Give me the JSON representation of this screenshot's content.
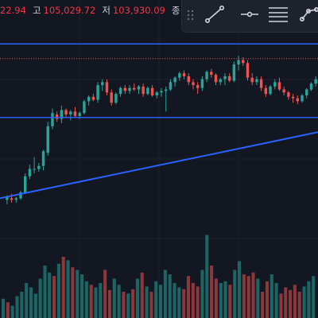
{
  "ohlc_bar": {
    "open_value": "22.94",
    "high_label": "고",
    "high_value": "105,029.72",
    "low_label": "저",
    "low_value": "103,930.09",
    "close_label": "종"
  },
  "toolbar": {
    "tools": [
      {
        "name": "trend-line-icon"
      },
      {
        "name": "horizontal-ray-icon"
      },
      {
        "name": "parallel-channel-icon"
      },
      {
        "name": "path-icon"
      }
    ]
  },
  "colors": {
    "background": "#131722",
    "up": "#26a69a",
    "down": "#ef5350",
    "line": "#2962ff",
    "text": "#d1d4dc"
  },
  "chart_data": {
    "type": "candlestick",
    "price_candles": [
      {
        "o": 0.02,
        "h": 0.05,
        "l": -0.01,
        "c": 0.04
      },
      {
        "o": 0.03,
        "h": 0.06,
        "l": 0.0,
        "c": 0.02
      },
      {
        "o": 0.02,
        "h": 0.04,
        "l": 0.0,
        "c": 0.03
      },
      {
        "o": 0.03,
        "h": 0.08,
        "l": 0.02,
        "c": 0.07
      },
      {
        "o": 0.07,
        "h": 0.2,
        "l": 0.06,
        "c": 0.18
      },
      {
        "o": 0.18,
        "h": 0.26,
        "l": 0.16,
        "c": 0.23
      },
      {
        "o": 0.23,
        "h": 0.31,
        "l": 0.2,
        "c": 0.23
      },
      {
        "o": 0.23,
        "h": 0.27,
        "l": 0.21,
        "c": 0.25
      },
      {
        "o": 0.25,
        "h": 0.36,
        "l": 0.22,
        "c": 0.35
      },
      {
        "o": 0.34,
        "h": 0.55,
        "l": 0.32,
        "c": 0.52
      },
      {
        "o": 0.52,
        "h": 0.64,
        "l": 0.5,
        "c": 0.61
      },
      {
        "o": 0.6,
        "h": 0.62,
        "l": 0.55,
        "c": 0.57
      },
      {
        "o": 0.57,
        "h": 0.66,
        "l": 0.54,
        "c": 0.63
      },
      {
        "o": 0.63,
        "h": 0.64,
        "l": 0.58,
        "c": 0.6
      },
      {
        "o": 0.6,
        "h": 0.63,
        "l": 0.56,
        "c": 0.62
      },
      {
        "o": 0.62,
        "h": 0.65,
        "l": 0.58,
        "c": 0.59
      },
      {
        "o": 0.59,
        "h": 0.62,
        "l": 0.57,
        "c": 0.61
      },
      {
        "o": 0.61,
        "h": 0.7,
        "l": 0.6,
        "c": 0.69
      },
      {
        "o": 0.69,
        "h": 0.73,
        "l": 0.66,
        "c": 0.72
      },
      {
        "o": 0.72,
        "h": 0.74,
        "l": 0.69,
        "c": 0.7
      },
      {
        "o": 0.7,
        "h": 0.82,
        "l": 0.68,
        "c": 0.8
      },
      {
        "o": 0.8,
        "h": 0.84,
        "l": 0.76,
        "c": 0.82
      },
      {
        "o": 0.82,
        "h": 0.84,
        "l": 0.73,
        "c": 0.75
      },
      {
        "o": 0.75,
        "h": 0.77,
        "l": 0.66,
        "c": 0.68
      },
      {
        "o": 0.68,
        "h": 0.75,
        "l": 0.67,
        "c": 0.74
      },
      {
        "o": 0.74,
        "h": 0.79,
        "l": 0.72,
        "c": 0.78
      },
      {
        "o": 0.78,
        "h": 0.8,
        "l": 0.74,
        "c": 0.76
      },
      {
        "o": 0.76,
        "h": 0.8,
        "l": 0.74,
        "c": 0.78
      },
      {
        "o": 0.78,
        "h": 0.81,
        "l": 0.76,
        "c": 0.77
      },
      {
        "o": 0.77,
        "h": 0.8,
        "l": 0.74,
        "c": 0.79
      },
      {
        "o": 0.79,
        "h": 0.81,
        "l": 0.72,
        "c": 0.74
      },
      {
        "o": 0.74,
        "h": 0.79,
        "l": 0.73,
        "c": 0.78
      },
      {
        "o": 0.78,
        "h": 0.8,
        "l": 0.72,
        "c": 0.73
      },
      {
        "o": 0.73,
        "h": 0.76,
        "l": 0.71,
        "c": 0.75
      },
      {
        "o": 0.75,
        "h": 0.78,
        "l": 0.72,
        "c": 0.76
      },
      {
        "o": 0.76,
        "h": 0.79,
        "l": 0.62,
        "c": 0.77
      },
      {
        "o": 0.77,
        "h": 0.84,
        "l": 0.76,
        "c": 0.82
      },
      {
        "o": 0.82,
        "h": 0.86,
        "l": 0.79,
        "c": 0.85
      },
      {
        "o": 0.85,
        "h": 0.89,
        "l": 0.83,
        "c": 0.88
      },
      {
        "o": 0.88,
        "h": 0.9,
        "l": 0.84,
        "c": 0.86
      },
      {
        "o": 0.86,
        "h": 0.88,
        "l": 0.8,
        "c": 0.82
      },
      {
        "o": 0.82,
        "h": 0.84,
        "l": 0.77,
        "c": 0.8
      },
      {
        "o": 0.8,
        "h": 0.82,
        "l": 0.74,
        "c": 0.78
      },
      {
        "o": 0.78,
        "h": 0.86,
        "l": 0.76,
        "c": 0.84
      },
      {
        "o": 0.84,
        "h": 0.9,
        "l": 0.82,
        "c": 0.89
      },
      {
        "o": 0.89,
        "h": 0.91,
        "l": 0.85,
        "c": 0.87
      },
      {
        "o": 0.87,
        "h": 0.88,
        "l": 0.8,
        "c": 0.82
      },
      {
        "o": 0.82,
        "h": 0.85,
        "l": 0.8,
        "c": 0.84
      },
      {
        "o": 0.84,
        "h": 0.88,
        "l": 0.8,
        "c": 0.86
      },
      {
        "o": 0.86,
        "h": 0.88,
        "l": 0.82,
        "c": 0.83
      },
      {
        "o": 0.83,
        "h": 0.96,
        "l": 0.82,
        "c": 0.94
      },
      {
        "o": 0.94,
        "h": 1.0,
        "l": 0.9,
        "c": 0.97
      },
      {
        "o": 0.97,
        "h": 0.99,
        "l": 0.93,
        "c": 0.95
      },
      {
        "o": 0.95,
        "h": 0.97,
        "l": 0.83,
        "c": 0.85
      },
      {
        "o": 0.85,
        "h": 0.88,
        "l": 0.8,
        "c": 0.82
      },
      {
        "o": 0.82,
        "h": 0.86,
        "l": 0.8,
        "c": 0.84
      },
      {
        "o": 0.84,
        "h": 0.86,
        "l": 0.76,
        "c": 0.78
      },
      {
        "o": 0.78,
        "h": 0.8,
        "l": 0.72,
        "c": 0.74
      },
      {
        "o": 0.74,
        "h": 0.8,
        "l": 0.73,
        "c": 0.79
      },
      {
        "o": 0.79,
        "h": 0.84,
        "l": 0.77,
        "c": 0.82
      },
      {
        "o": 0.82,
        "h": 0.85,
        "l": 0.76,
        "c": 0.77
      },
      {
        "o": 0.77,
        "h": 0.79,
        "l": 0.73,
        "c": 0.75
      },
      {
        "o": 0.75,
        "h": 0.76,
        "l": 0.7,
        "c": 0.72
      },
      {
        "o": 0.72,
        "h": 0.74,
        "l": 0.68,
        "c": 0.71
      },
      {
        "o": 0.71,
        "h": 0.73,
        "l": 0.67,
        "c": 0.69
      },
      {
        "o": 0.69,
        "h": 0.74,
        "l": 0.68,
        "c": 0.73
      },
      {
        "o": 0.73,
        "h": 0.78,
        "l": 0.71,
        "c": 0.77
      },
      {
        "o": 0.77,
        "h": 0.82,
        "l": 0.76,
        "c": 0.81
      },
      {
        "o": 0.81,
        "h": 0.86,
        "l": 0.79,
        "c": 0.84
      }
    ],
    "volumes": [
      0.22,
      0.18,
      0.14,
      0.25,
      0.3,
      0.4,
      0.35,
      0.28,
      0.45,
      0.6,
      0.52,
      0.48,
      0.62,
      0.7,
      0.66,
      0.58,
      0.55,
      0.5,
      0.42,
      0.38,
      0.35,
      0.4,
      0.55,
      0.32,
      0.45,
      0.38,
      0.3,
      0.28,
      0.33,
      0.45,
      0.52,
      0.36,
      0.3,
      0.42,
      0.38,
      0.55,
      0.5,
      0.4,
      0.35,
      0.33,
      0.48,
      0.4,
      0.36,
      0.55,
      0.95,
      0.6,
      0.45,
      0.4,
      0.42,
      0.38,
      0.55,
      0.65,
      0.5,
      0.48,
      0.52,
      0.45,
      0.3,
      0.42,
      0.5,
      0.4,
      0.28,
      0.35,
      0.32,
      0.38,
      0.3,
      0.36,
      0.42,
      0.48
    ],
    "lines": [
      {
        "kind": "horizontal",
        "level": 1.08
      },
      {
        "kind": "horizontal",
        "level": 0.58
      },
      {
        "kind": "trend",
        "from": [
          0.0,
          0.03
        ],
        "to": [
          1.0,
          0.48
        ]
      }
    ],
    "dotted_level": 0.98
  }
}
